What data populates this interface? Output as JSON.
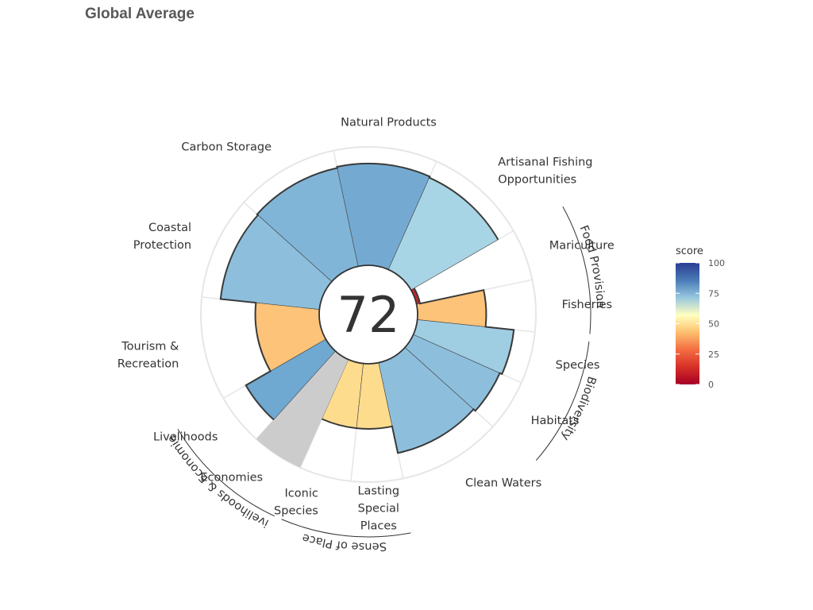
{
  "title": "Global Average",
  "chart_data": {
    "type": "polar-bar",
    "title": "Global Average",
    "center_score": "72",
    "scale": [
      0,
      100
    ],
    "goals": [
      {
        "name": "Mariculture",
        "label": [
          "Mariculture"
        ],
        "score": 3,
        "weight": 0.5,
        "color": "#c0262d"
      },
      {
        "name": "Fisheries",
        "label": [
          "Fisheries"
        ],
        "score": 58,
        "weight": 0.5,
        "color": "#fdc378"
      },
      {
        "name": "Species",
        "label": [
          "Species"
        ],
        "score": 82,
        "weight": 0.5,
        "color": "#9fcde2"
      },
      {
        "name": "Habitats",
        "label": [
          "Habitats"
        ],
        "score": 80,
        "weight": 0.5,
        "color": "#8dbfdd"
      },
      {
        "name": "Clean Waters",
        "label": [
          "Clean Waters"
        ],
        "score": 78,
        "weight": 1,
        "color": "#8dbfdd"
      },
      {
        "name": "Lasting Special Places",
        "label": [
          "Lasting",
          "Special",
          "Places"
        ],
        "score": 55,
        "weight": 0.5,
        "color": "#fedc8e"
      },
      {
        "name": "Iconic Species",
        "label": [
          "Iconic",
          "Species"
        ],
        "score": 55,
        "weight": 0.5,
        "color": "#fedc8e"
      },
      {
        "name": "Economies",
        "label": [
          "Economies"
        ],
        "score": null,
        "weight": 0.5,
        "color": "#cccccc"
      },
      {
        "name": "Livelihoods",
        "label": [
          "Livelihoods"
        ],
        "score": 78,
        "weight": 0.5,
        "color": "#6fa8d0"
      },
      {
        "name": "Tourism & Recreation",
        "label": [
          "Tourism &",
          "Recreation"
        ],
        "score": 54,
        "weight": 1,
        "color": "#fdc378"
      },
      {
        "name": "Coastal Protection",
        "label": [
          "Coastal",
          "Protection"
        ],
        "score": 84,
        "weight": 1,
        "color": "#8dbfdd"
      },
      {
        "name": "Carbon Storage",
        "label": [
          "Carbon Storage"
        ],
        "score": 85,
        "weight": 1,
        "color": "#80b5d8"
      },
      {
        "name": "Natural Products",
        "label": [
          "Natural Products"
        ],
        "score": 86,
        "weight": 1,
        "color": "#74aad2"
      },
      {
        "name": "Artisanal Fishing Opportunities",
        "label": [
          "Artisanal Fishing",
          "Opportunities"
        ],
        "score": 85,
        "weight": 1,
        "color": "#a8d5e6"
      }
    ],
    "groups": [
      {
        "name": "Food Provision",
        "goals": [
          "Mariculture",
          "Fisheries"
        ]
      },
      {
        "name": "Biodiversity",
        "goals": [
          "Species",
          "Habitats"
        ]
      },
      {
        "name": "Sense of Place",
        "goals": [
          "Lasting Special Places",
          "Iconic Species"
        ]
      },
      {
        "name": "Livelihoods & Economies",
        "goals": [
          "Economies",
          "Livelihoods"
        ]
      }
    ],
    "legend": {
      "title": "score",
      "ticks": [
        "100",
        "75",
        "50",
        "25",
        "0"
      ],
      "placement": "right",
      "stops": [
        "#2b3c93",
        "#4a7bb7",
        "#98c7df",
        "#ffffbf",
        "#fdc06e",
        "#f46d43",
        "#d73027",
        "#a50026"
      ]
    }
  }
}
